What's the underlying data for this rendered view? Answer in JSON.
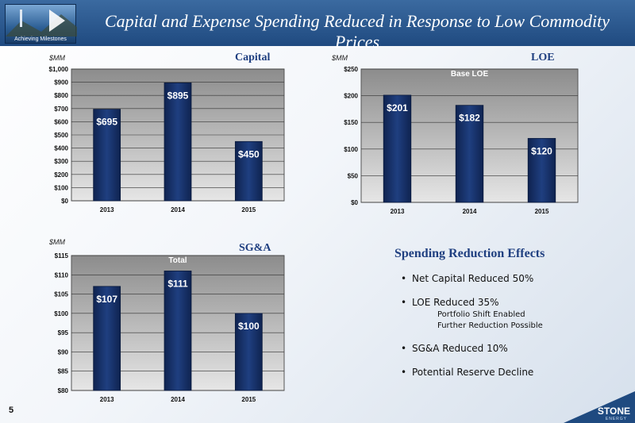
{
  "header": {
    "title": "Capital and Expense Spending Reduced in Response to Low Commodity Prices",
    "logo_caption": "Achieving Milestones"
  },
  "colors": {
    "bar": "#1f3f80",
    "bar_dark": "#0f2350",
    "plot_bg": "#bfbfbf",
    "label": "#1f3f80"
  },
  "chart_data": [
    {
      "type": "bar",
      "title": "Capital",
      "ylabel": "$MM",
      "categories": [
        "2013",
        "2014",
        "2015"
      ],
      "values": [
        695,
        895,
        450
      ],
      "data_labels": [
        "$695",
        "$895",
        "$450"
      ],
      "ylim": [
        0,
        1000
      ],
      "yticks": [
        0,
        100,
        200,
        300,
        400,
        500,
        600,
        700,
        800,
        900,
        1000
      ],
      "ytick_labels": [
        "$0",
        "$100",
        "$200",
        "$300",
        "$400",
        "$500",
        "$600",
        "$700",
        "$800",
        "$900",
        "$1,000"
      ],
      "annotation": ""
    },
    {
      "type": "bar",
      "title": "LOE",
      "ylabel": "$MM",
      "categories": [
        "2013",
        "2014",
        "2015"
      ],
      "values": [
        201,
        182,
        120
      ],
      "data_labels": [
        "$201",
        "$182",
        "$120"
      ],
      "ylim": [
        0,
        250
      ],
      "yticks": [
        0,
        50,
        100,
        150,
        200,
        250
      ],
      "ytick_labels": [
        "$0",
        "$50",
        "$100",
        "$150",
        "$200",
        "$250"
      ],
      "annotation": "Base LOE"
    },
    {
      "type": "bar",
      "title": "SG&A",
      "ylabel": "$MM",
      "categories": [
        "2013",
        "2014",
        "2015"
      ],
      "values": [
        107,
        111,
        100
      ],
      "data_labels": [
        "$107",
        "$111",
        "$100"
      ],
      "ylim": [
        80,
        115
      ],
      "yticks": [
        80,
        85,
        90,
        95,
        100,
        105,
        110,
        115
      ],
      "ytick_labels": [
        "$80",
        "$85",
        "$90",
        "$95",
        "$100",
        "$105",
        "$110",
        "$115"
      ],
      "annotation": "Total"
    }
  ],
  "effects": {
    "title": "Spending Reduction Effects",
    "items": [
      {
        "text": "Net Capital Reduced 50%",
        "subs": []
      },
      {
        "text": "LOE Reduced  35%",
        "subs": [
          "Portfolio Shift Enabled",
          "Further Reduction Possible"
        ]
      },
      {
        "text": "SG&A Reduced 10%",
        "subs": []
      },
      {
        "text": "Potential Reserve Decline",
        "subs": []
      }
    ]
  },
  "footer": {
    "page_number": "5",
    "brand": "STONE",
    "brand_sub": "ENERGY"
  }
}
